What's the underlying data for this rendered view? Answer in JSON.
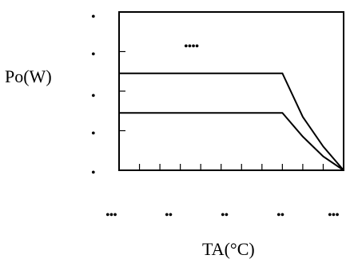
{
  "chart_data": {
    "type": "line",
    "title": "",
    "xlabel": "TA(°C)",
    "ylabel": "Po(W)",
    "x_tick_labels": [
      "•••",
      "••",
      "••",
      "••",
      "•••"
    ],
    "y_tick_labels": [
      "•",
      "•",
      "•",
      "•",
      "•"
    ],
    "annotation": "••••",
    "xlim": [
      0,
      11
    ],
    "ylim": [
      0,
      4
    ],
    "grid": false,
    "legend": "none",
    "series": [
      {
        "values": [
          [
            0,
            2.45
          ],
          [
            8,
            2.45
          ],
          [
            9,
            1.35
          ],
          [
            10,
            0.6
          ],
          [
            11,
            0
          ]
        ]
      },
      {
        "values": [
          [
            0,
            1.45
          ],
          [
            8,
            1.45
          ],
          [
            9,
            0.85
          ],
          [
            10,
            0.35
          ],
          [
            11,
            0
          ]
        ]
      }
    ],
    "line_color": "#000000"
  }
}
